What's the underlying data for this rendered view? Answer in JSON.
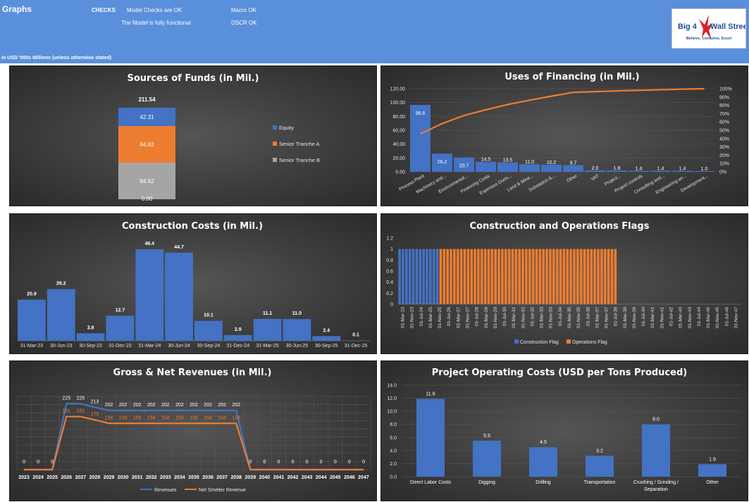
{
  "header": {
    "title": "Graphs",
    "checks_label": "CHECKS",
    "check1": "Model Checks are OK",
    "check2": "The Model is fully functional",
    "check3": "Macro OK",
    "check4": "DSCR OK",
    "units_note": "in USD '000s Millions (unless otherwise stated)",
    "logo_text1": "Big 4",
    "logo_text2": "Wall Street",
    "logo_tagline": "Believe, Conceive, Excel"
  },
  "colors": {
    "blue": "#4472c4",
    "orange": "#ed7d31",
    "gray": "#a5a5a5",
    "header_bg": "#5a8fdc"
  },
  "chart_data": [
    {
      "id": "sources",
      "type": "bar",
      "title": "Sources of Funds (in Mil.)",
      "stacked": true,
      "total_label": "211.54",
      "zero_label": "0.00",
      "series": [
        {
          "name": "Equity",
          "values": [
            42.31
          ],
          "label": "42.31",
          "color": "#4472c4"
        },
        {
          "name": "Senior Tranche A",
          "values": [
            84.62
          ],
          "label": "84.62",
          "color": "#ed7d31"
        },
        {
          "name": "Senior Tranche B",
          "values": [
            84.62
          ],
          "label": "84.62",
          "color": "#a5a5a5"
        }
      ],
      "legend": "right"
    },
    {
      "id": "uses",
      "type": "bar",
      "title": "Uses of Financing (in Mil.)",
      "categories": [
        "Process Plant",
        "Machinery and...",
        "Environmental...",
        "Financing Costs",
        "Expenses Durin...",
        "Land & Mine...",
        "Substation &...",
        "Other",
        "VAT",
        "Project...",
        "Project controls",
        "Consulting and...",
        "Engineering an...",
        "Development..."
      ],
      "values": [
        96.6,
        26.2,
        20.7,
        14.5,
        13.5,
        11.0,
        10.2,
        9.7,
        2.0,
        1.9,
        1.4,
        1.4,
        1.4,
        1.0
      ],
      "value_labels": [
        "96.6",
        "26.2",
        "20.7",
        "14.5",
        "13.5",
        "11.0",
        "10.2",
        "9.7",
        "2.0",
        "1.9",
        "1.4",
        "1.4",
        "1.4",
        "1.0"
      ],
      "cumulative_pct": [
        45.6,
        58.0,
        67.8,
        74.6,
        81.0,
        86.2,
        91.0,
        95.6,
        96.5,
        97.4,
        98.1,
        98.8,
        99.5,
        100.0
      ],
      "ylim": [
        0,
        120
      ],
      "yticks": [
        "0.00",
        "20.00",
        "40.00",
        "60.00",
        "80.00",
        "100.00",
        "120.00"
      ],
      "y2ticks": [
        "0%",
        "10%",
        "20%",
        "30%",
        "40%",
        "50%",
        "60%",
        "70%",
        "80%",
        "90%",
        "100%"
      ],
      "y2lim": [
        0,
        100
      ]
    },
    {
      "id": "construction",
      "type": "bar",
      "title": "Construction Costs (in Mil.)",
      "categories": [
        "31-Mar-23",
        "30-Jun-23",
        "30-Sep-23",
        "31-Dec-23",
        "31-Mar-24",
        "30-Jun-24",
        "30-Sep-24",
        "31-Dec-24",
        "31-Mar-25",
        "30-Jun-25",
        "30-Sep-25",
        "31-Dec-25"
      ],
      "values": [
        20.9,
        26.2,
        3.8,
        12.7,
        46.4,
        44.7,
        10.1,
        2.9,
        11.1,
        11.0,
        2.4,
        0.1
      ],
      "value_labels": [
        "20.9",
        "26.2",
        "3.8",
        "12.7",
        "46.4",
        "44.7",
        "10.1",
        "2.9",
        "11.1",
        "11.0",
        "2.4",
        "0.1"
      ],
      "ylim": [
        0,
        50
      ]
    },
    {
      "id": "flags",
      "type": "bar",
      "title": "Construction and Operations Flags",
      "yticks": [
        "0",
        "0.2",
        "0.4",
        "0.6",
        "0.8",
        "1",
        "1.2"
      ],
      "ylim": [
        0,
        1.2
      ],
      "x_labels": [
        "01-Mar-23",
        "01-Nov-23",
        "01-Jul-24",
        "01-Mar-25",
        "01-Nov-25",
        "01-Jul-26",
        "01-Mar-27",
        "01-Nov-27",
        "01-Jul-28",
        "01-Mar-29",
        "01-Nov-29",
        "01-Jul-30",
        "01-Mar-31",
        "01-Nov-31",
        "01-Jul-32",
        "01-Mar-33",
        "01-Nov-33",
        "01-Jul-34",
        "01-Mar-35",
        "01-Nov-35",
        "01-Jul-36",
        "01-Mar-37",
        "01-Nov-37",
        "01-Jul-38",
        "01-Mar-39",
        "01-Nov-39",
        "01-Jul-40",
        "01-Mar-41",
        "01-Nov-41",
        "01-Jul-42",
        "01-Mar-43",
        "01-Nov-43",
        "01-Jul-44",
        "01-Mar-45",
        "01-Nov-45",
        "01-Jul-46",
        "01-Nov-47"
      ],
      "construction_periods": 12,
      "operations_periods": 52,
      "empty_periods": 36,
      "series": [
        {
          "name": "Construction Flag",
          "color": "#4472c4"
        },
        {
          "name": "Operations Flag",
          "color": "#ed7d31"
        }
      ],
      "legend": "bottom"
    },
    {
      "id": "revenues",
      "type": "line",
      "title": "Gross & Net Revenues (in Mil.)",
      "categories": [
        "2023",
        "2024",
        "2025",
        "2026",
        "2027",
        "2028",
        "2029",
        "2030",
        "2031",
        "2032",
        "2033",
        "2034",
        "2035",
        "2036",
        "2037",
        "2038",
        "2039",
        "2040",
        "2041",
        "2042",
        "2043",
        "2044",
        "2045",
        "2046",
        "2047"
      ],
      "series": [
        {
          "name": "Revenues",
          "color": "#4472c4",
          "values": [
            0,
            0,
            0,
            225,
            225,
            213,
            202,
            202,
            202,
            202,
            202,
            202,
            202,
            202,
            202,
            202,
            0,
            0,
            0,
            0,
            0,
            0,
            0,
            0,
            0
          ],
          "labels": [
            "0",
            "0",
            "0",
            "225",
            "225",
            "213",
            "202",
            "202",
            "202",
            "202",
            "202",
            "202",
            "202",
            "202",
            "202",
            "202",
            "0",
            "0",
            "0",
            "0",
            "0",
            "0",
            "0",
            "0",
            "0"
          ]
        },
        {
          "name": "Net Smelter Revenue",
          "color": "#ed7d31",
          "values": [
            0,
            0,
            0,
            181,
            181,
            170,
            158,
            158,
            158,
            158,
            158,
            158,
            158,
            158,
            158,
            158,
            0,
            0,
            0,
            0,
            0,
            0,
            0,
            0,
            0
          ],
          "labels": [
            "",
            "",
            "",
            "181",
            "181",
            "170",
            "158",
            "158",
            "158",
            "158",
            "158",
            "158",
            "158",
            "158",
            "158",
            "158",
            "",
            "",
            "",
            "",
            "",
            "",
            "",
            "",
            ""
          ]
        }
      ],
      "ylim": [
        0,
        250
      ],
      "legend": "bottom"
    },
    {
      "id": "opcosts",
      "type": "bar",
      "title": "Project Operating Costs (USD per Tons Produced)",
      "categories": [
        "Direct Labor Costs",
        "Digging",
        "Drilling",
        "Transportation",
        "Crushing / Grinding / Separation",
        "Other"
      ],
      "category_lines": [
        [
          "Direct Labor Costs"
        ],
        [
          "Digging"
        ],
        [
          "Drilling"
        ],
        [
          "Transportation"
        ],
        [
          "Crushing / Grinding /",
          "Separation"
        ],
        [
          "Other"
        ]
      ],
      "values": [
        11.9,
        5.5,
        4.5,
        3.2,
        8.0,
        1.9
      ],
      "value_labels": [
        "11.9",
        "5.5",
        "4.5",
        "3.2",
        "8.0",
        "1.9"
      ],
      "ylim": [
        0,
        14
      ],
      "yticks": [
        "0.0",
        "2.0",
        "4.0",
        "6.0",
        "8.0",
        "10.0",
        "12.0",
        "14.0"
      ]
    }
  ]
}
